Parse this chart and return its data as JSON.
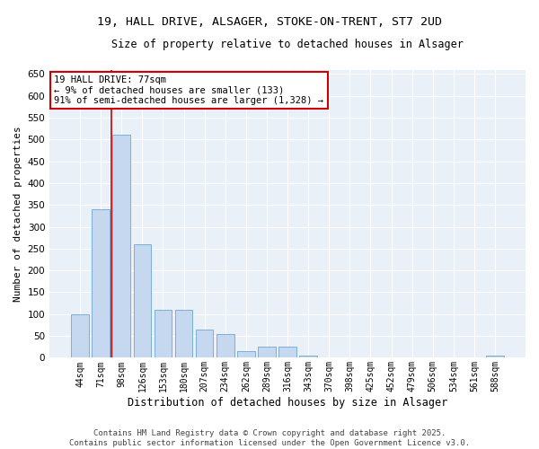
{
  "title_line1": "19, HALL DRIVE, ALSAGER, STOKE-ON-TRENT, ST7 2UD",
  "title_line2": "Size of property relative to detached houses in Alsager",
  "xlabel": "Distribution of detached houses by size in Alsager",
  "ylabel": "Number of detached properties",
  "categories": [
    "44sqm",
    "71sqm",
    "98sqm",
    "126sqm",
    "153sqm",
    "180sqm",
    "207sqm",
    "234sqm",
    "262sqm",
    "289sqm",
    "316sqm",
    "343sqm",
    "370sqm",
    "398sqm",
    "425sqm",
    "452sqm",
    "479sqm",
    "506sqm",
    "534sqm",
    "561sqm",
    "588sqm"
  ],
  "values": [
    100,
    340,
    510,
    260,
    110,
    110,
    65,
    55,
    15,
    25,
    25,
    5,
    0,
    0,
    0,
    0,
    0,
    0,
    0,
    0,
    5
  ],
  "bar_color": "#c5d8f0",
  "bar_edge_color": "#7aafd4",
  "vline_x": 1.5,
  "vline_color": "#cc0000",
  "annotation_text": "19 HALL DRIVE: 77sqm\n← 9% of detached houses are smaller (133)\n91% of semi-detached houses are larger (1,328) →",
  "annotation_box_color": "#ffffff",
  "annotation_box_edge": "#cc0000",
  "annotation_fontsize": 7.5,
  "background_color": "#eaf0f8",
  "grid_color": "#ffffff",
  "fig_background": "#ffffff",
  "ylim": [
    0,
    660
  ],
  "yticks": [
    0,
    50,
    100,
    150,
    200,
    250,
    300,
    350,
    400,
    450,
    500,
    550,
    600,
    650
  ],
  "title_fontsize1": 9.5,
  "title_fontsize2": 8.5,
  "ylabel_fontsize": 8,
  "xlabel_fontsize": 8.5,
  "xtick_fontsize": 7,
  "ytick_fontsize": 7.5,
  "footer_line1": "Contains HM Land Registry data © Crown copyright and database right 2025.",
  "footer_line2": "Contains public sector information licensed under the Open Government Licence v3.0.",
  "footer_fontsize": 6.5
}
